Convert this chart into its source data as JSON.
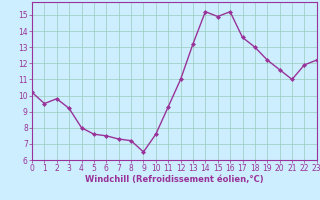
{
  "x": [
    0,
    1,
    2,
    3,
    4,
    5,
    6,
    7,
    8,
    9,
    10,
    11,
    12,
    13,
    14,
    15,
    16,
    17,
    18,
    19,
    20,
    21,
    22,
    23
  ],
  "y": [
    10.2,
    9.5,
    9.8,
    9.2,
    8.0,
    7.6,
    7.5,
    7.3,
    7.2,
    6.5,
    7.6,
    9.3,
    11.0,
    13.2,
    15.2,
    14.9,
    15.2,
    13.6,
    13.0,
    12.2,
    11.6,
    11.0,
    11.9,
    12.2
  ],
  "line_color": "#993399",
  "marker": "D",
  "marker_size": 2.0,
  "line_width": 1.0,
  "bg_color": "#cceeff",
  "grid_color": "#99ccbb",
  "xlabel": "Windchill (Refroidissement éolien,°C)",
  "xlabel_fontsize": 6.0,
  "tick_fontsize": 5.5,
  "ylim": [
    6,
    15.8
  ],
  "xlim": [
    0,
    23
  ],
  "yticks": [
    6,
    7,
    8,
    9,
    10,
    11,
    12,
    13,
    14,
    15
  ],
  "xticks": [
    0,
    1,
    2,
    3,
    4,
    5,
    6,
    7,
    8,
    9,
    10,
    11,
    12,
    13,
    14,
    15,
    16,
    17,
    18,
    19,
    20,
    21,
    22,
    23
  ]
}
